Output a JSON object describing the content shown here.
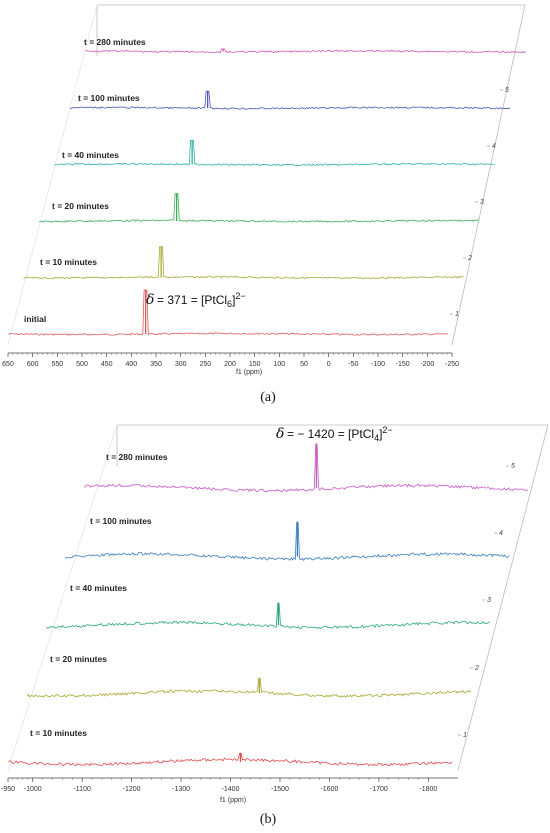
{
  "chart_data": [
    {
      "type": "line",
      "panel": "a",
      "caption": "(a)",
      "x_unit_label": "f1 (ppm)",
      "x_ticks": [
        650,
        600,
        550,
        500,
        450,
        400,
        350,
        300,
        250,
        200,
        150,
        100,
        50,
        0,
        -50,
        -100,
        -150,
        -200,
        -250
      ],
      "x_tick_labels": [
        "650",
        "600",
        "550",
        "500",
        "450",
        "400",
        "350",
        "300",
        "250",
        "200",
        "150",
        "100",
        "50",
        "0",
        "-50",
        "-100",
        "-150",
        "-200",
        "-250"
      ],
      "xlim": [
        650,
        -250
      ],
      "depth_ticks": [
        "1",
        "2",
        "3",
        "4",
        "5"
      ],
      "annotation": {
        "symbol": "δ",
        "value_text": "= 371 = [PtCl",
        "subscript": "6",
        "tail": "]",
        "superscript": "2−"
      },
      "series": [
        {
          "name": "initial",
          "color": "#e05a5a",
          "peak_ppm": 371,
          "peak_height": 1.0
        },
        {
          "name": "t = 10 minutes",
          "color": "#a8a832",
          "peak_ppm": 371,
          "peak_height": 0.7
        },
        {
          "name": "t = 20 minutes",
          "color": "#3cae5a",
          "peak_ppm": 371,
          "peak_height": 0.62
        },
        {
          "name": "t = 40 minutes",
          "color": "#2bb3a0",
          "peak_ppm": 371,
          "peak_height": 0.55
        },
        {
          "name": "t = 100 minutes",
          "color": "#4b55b8",
          "peak_ppm": 371,
          "peak_height": 0.38
        },
        {
          "name": "t = 280 minutes",
          "color": "#d356b8",
          "peak_ppm": 371,
          "peak_height": 0.06
        }
      ]
    },
    {
      "type": "line",
      "panel": "b",
      "caption": "(b)",
      "x_unit_label": "f1 (ppm)",
      "x_ticks": [
        -950,
        -1000,
        -1100,
        -1200,
        -1300,
        -1400,
        -1500,
        -1600,
        -1700,
        -1800
      ],
      "x_tick_labels": [
        "-950",
        "-1000",
        "-1100",
        "-1200",
        "-1300",
        "-1400",
        "-1500",
        "-1600",
        "-1700",
        "-1800"
      ],
      "xlim": [
        -950,
        -1860
      ],
      "depth_ticks": [
        "1",
        "2",
        "3",
        "4",
        "5"
      ],
      "annotation": {
        "symbol": "δ",
        "value_text": "= − 1420 = [PtCl",
        "subscript": "4",
        "tail": "]",
        "superscript": "2−"
      },
      "series": [
        {
          "name": "t = 10 minutes",
          "color": "#e04a4a",
          "peak_ppm": -1420,
          "peak_height": 0.2
        },
        {
          "name": "t = 20 minutes",
          "color": "#a8a832",
          "peak_ppm": -1420,
          "peak_height": 0.35
        },
        {
          "name": "t = 40 minutes",
          "color": "#2ba878",
          "peak_ppm": -1420,
          "peak_height": 0.5
        },
        {
          "name": "t = 100 minutes",
          "color": "#3a7cc0",
          "peak_ppm": -1420,
          "peak_height": 0.78
        },
        {
          "name": "t = 280 minutes",
          "color": "#c85ac8",
          "peak_ppm": -1420,
          "peak_height": 1.0
        }
      ]
    }
  ]
}
